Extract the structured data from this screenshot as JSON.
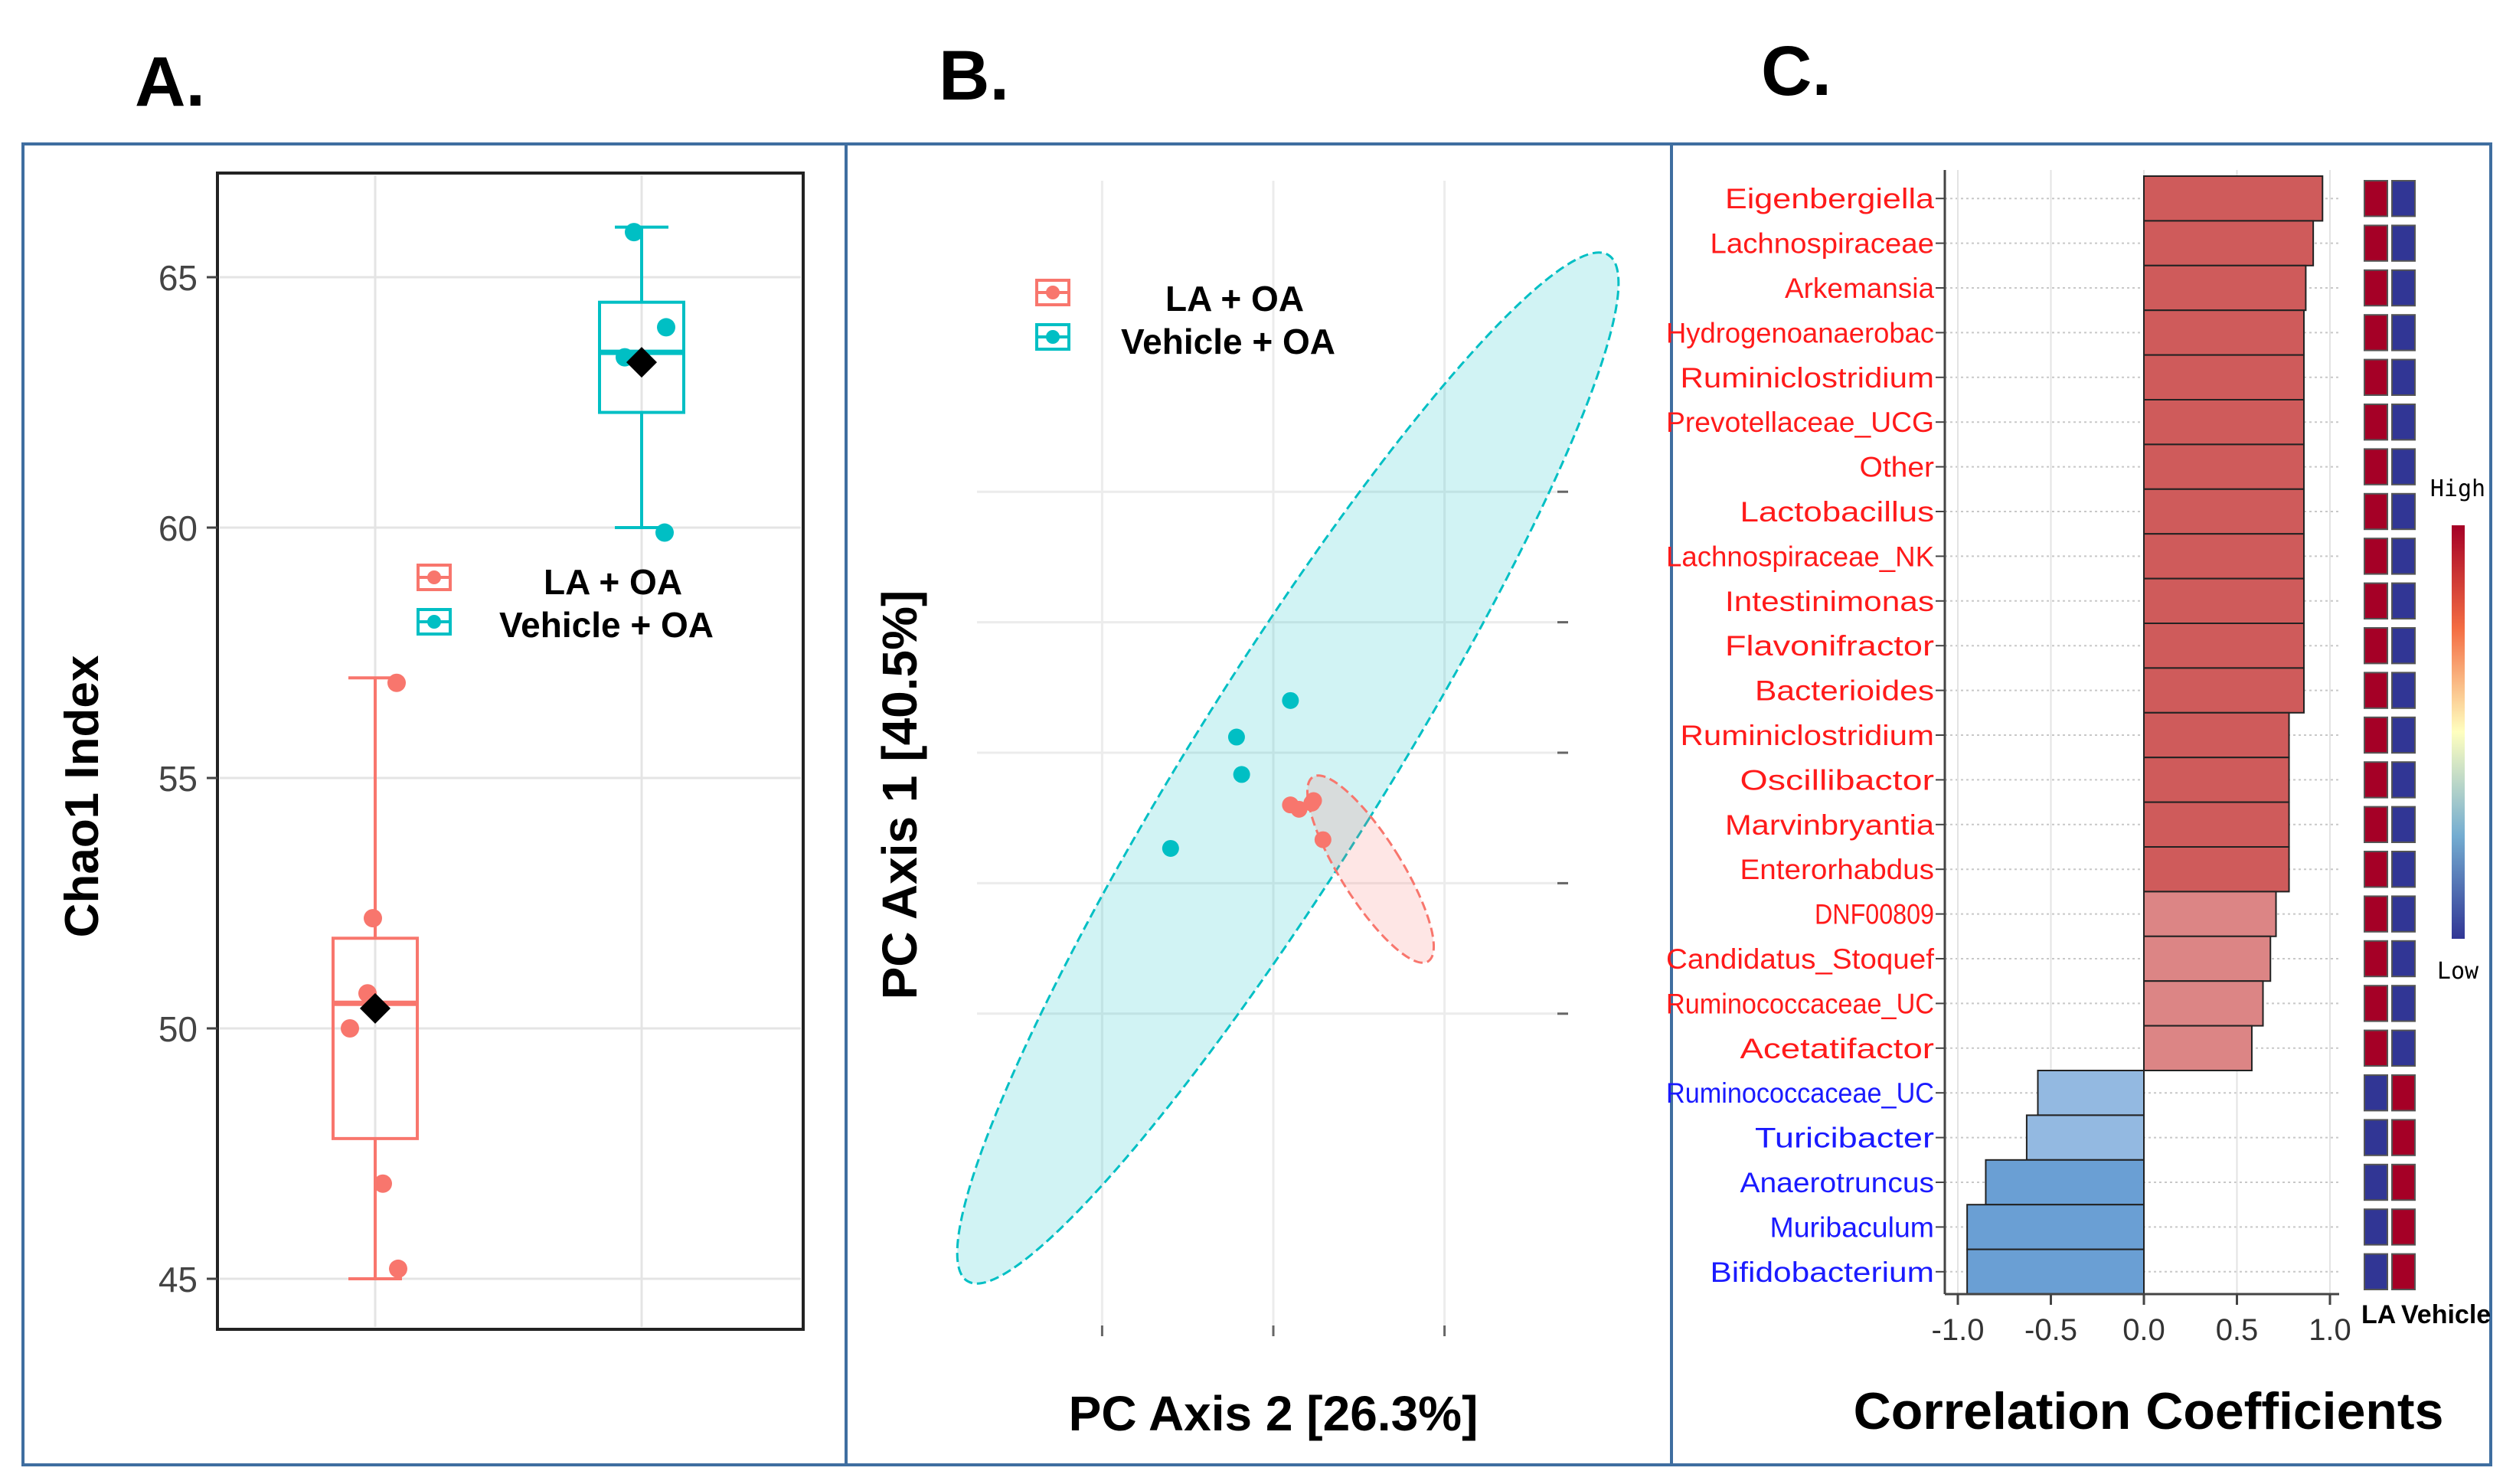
{
  "panel_labels": [
    "A.",
    "B.",
    "C."
  ],
  "colors": {
    "la": "#F8766D",
    "vehicle": "#00BFC4",
    "frame": "#3f6ea0",
    "pos_bar": "#cf5b5b",
    "neg_bar": "#6a9fd4",
    "label_pos": "#ff1a1a",
    "label_neg": "#1a1aff",
    "heat_high": "#a50026",
    "heat_low": "#313695"
  },
  "chart_data": [
    {
      "id": "A",
      "type": "box",
      "ylabel": "Chao1 Index",
      "xlabel": "",
      "ylim": [
        44,
        67
      ],
      "yticks": [
        45,
        50,
        55,
        60,
        65
      ],
      "grid": true,
      "legend": {
        "placement": "center-right",
        "entries": [
          "LA + OA",
          "Vehicle + OA"
        ]
      },
      "series": [
        {
          "name": "LA + OA",
          "min": 45,
          "q1": 47.8,
          "median": 50.5,
          "q3": 51.8,
          "max": 57,
          "mean": 50.4,
          "points": [
            56.9,
            52.2,
            50.7,
            50.0,
            46.9,
            45.2
          ]
        },
        {
          "name": "Vehicle + OA",
          "min": 60,
          "q1": 62.3,
          "median": 63.5,
          "q3": 64.5,
          "max": 66,
          "mean": 63.3,
          "points": [
            65.9,
            64.0,
            63.4,
            59.9
          ]
        }
      ]
    },
    {
      "id": "B",
      "type": "scatter",
      "xlabel": "PC Axis 2 [26.3%]",
      "ylabel": "PC Axis 1 [40.5%]",
      "xlim": [
        -0.35,
        0.35
      ],
      "ylim": [
        -0.35,
        0.35
      ],
      "grid": true,
      "legend": {
        "placement": "top-left",
        "entries": [
          "LA + OA",
          "Vehicle + OA"
        ]
      },
      "series": [
        {
          "name": "LA + OA",
          "points": [
            [
              0.02,
              -0.06
            ],
            [
              0.03,
              -0.065
            ],
            [
              0.045,
              -0.058
            ],
            [
              0.047,
              -0.055
            ],
            [
              0.058,
              -0.1
            ]
          ]
        },
        {
          "name": "Vehicle + OA",
          "points": [
            [
              -0.12,
              -0.11
            ],
            [
              -0.043,
              0.018
            ],
            [
              -0.037,
              -0.025
            ],
            [
              0.02,
              0.06
            ]
          ]
        }
      ]
    },
    {
      "id": "C",
      "type": "bar",
      "orientation": "horizontal",
      "xlabel": "Correlation Coefficients",
      "ylabel": "",
      "xlim": [
        -1.08,
        1.05
      ],
      "xticks": [
        "-1.0",
        "-0.5",
        "0.0",
        "0.5",
        "1.0"
      ],
      "categories": [
        "Eigenbergiella",
        "Lachnospiraceae",
        "Arkemansia",
        "Hydrogenoanaerobac",
        "Ruminiclostridium",
        "Prevotellaceae_UCG",
        "Other",
        "Lactobacillus",
        "Lachnospiraceae_NK",
        "Intestinimonas",
        "Flavonifractor",
        "Bacterioides",
        "Ruminiclostridium",
        "Oscillibactor",
        "Marvinbryantia",
        "Enterorhabdus",
        "DNF00809",
        "Candidatus_Stoquef",
        "Ruminococcaceae_UC",
        "Acetatifactor",
        "Ruminococcaceae_UC",
        "Turicibacter",
        "Anaerotruncus",
        "Muribaculum",
        "Bifidobacterium"
      ],
      "values": [
        0.96,
        0.91,
        0.87,
        0.86,
        0.86,
        0.86,
        0.86,
        0.86,
        0.86,
        0.86,
        0.86,
        0.86,
        0.78,
        0.78,
        0.78,
        0.78,
        0.71,
        0.68,
        0.64,
        0.58,
        -0.57,
        -0.63,
        -0.85,
        -0.95,
        -0.95
      ],
      "heatmap": {
        "columns": [
          "LA",
          "Vehicle"
        ],
        "high_label": "High",
        "low_label": "Low"
      }
    }
  ]
}
